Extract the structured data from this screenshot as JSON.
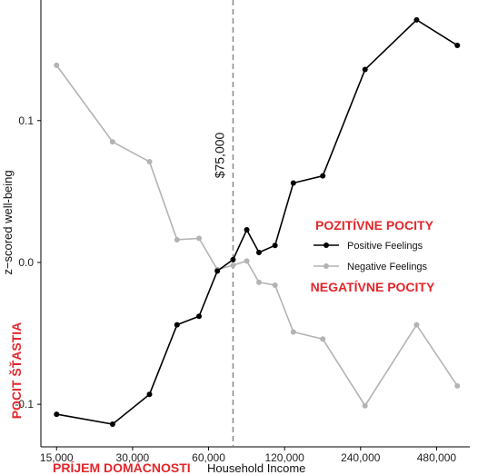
{
  "chart_data": {
    "type": "line",
    "xlabel": "Household Income",
    "ylabel": "z−scored well-being",
    "x_scale": "log",
    "x_ticks": [
      {
        "value": 15000,
        "label": "15,000"
      },
      {
        "value": 30000,
        "label": "30,000"
      },
      {
        "value": 60000,
        "label": "60,000"
      },
      {
        "value": 120000,
        "label": "120,000"
      },
      {
        "value": 240000,
        "label": "240,000"
      },
      {
        "value": 480000,
        "label": "480,000"
      }
    ],
    "y_ticks": [
      {
        "value": -0.1,
        "label": "-0.1"
      },
      {
        "value": 0.0,
        "label": "0.0"
      },
      {
        "value": 0.1,
        "label": "0.1"
      }
    ],
    "xlim": [
      13000,
      650000
    ],
    "ylim": [
      -0.13,
      0.185
    ],
    "grid": false,
    "reference_line": {
      "x": 75000,
      "label": "$75,000",
      "style": "dashed",
      "color": "#888888"
    },
    "series": [
      {
        "name": "Positive Feelings",
        "color": "#000000",
        "points": [
          [
            15000,
            -0.107
          ],
          [
            25000,
            -0.114
          ],
          [
            35000,
            -0.093
          ],
          [
            45000,
            -0.044
          ],
          [
            55000,
            -0.038
          ],
          [
            65000,
            -0.006
          ],
          [
            75000,
            0.002
          ],
          [
            85000,
            0.023
          ],
          [
            95000,
            0.007
          ],
          [
            110000,
            0.012
          ],
          [
            130000,
            0.056
          ],
          [
            170000,
            0.061
          ],
          [
            250000,
            0.136
          ],
          [
            400000,
            0.171
          ],
          [
            580000,
            0.153
          ]
        ]
      },
      {
        "name": "Negative Feelings",
        "color": "#b3b3b3",
        "points": [
          [
            15000,
            0.139
          ],
          [
            25000,
            0.085
          ],
          [
            35000,
            0.071
          ],
          [
            45000,
            0.016
          ],
          [
            55000,
            0.017
          ],
          [
            65000,
            -0.005
          ],
          [
            75000,
            -0.002
          ],
          [
            85000,
            0.001
          ],
          [
            95000,
            -0.014
          ],
          [
            110000,
            -0.016
          ],
          [
            130000,
            -0.049
          ],
          [
            170000,
            -0.054
          ],
          [
            250000,
            -0.101
          ],
          [
            400000,
            -0.044
          ],
          [
            580000,
            -0.087
          ]
        ]
      }
    ],
    "legend": {
      "position": "right-middle"
    },
    "annotations": {
      "positive_label": "POZITÍVNE POCITY",
      "negative_label": "NEGATÍVNE POCITY",
      "y_overlay_label": "POCIT ŠŤASTIA",
      "x_overlay_label": "PRÍJEM DOMÁCNOSTI",
      "label_color": "#e3262b"
    }
  }
}
